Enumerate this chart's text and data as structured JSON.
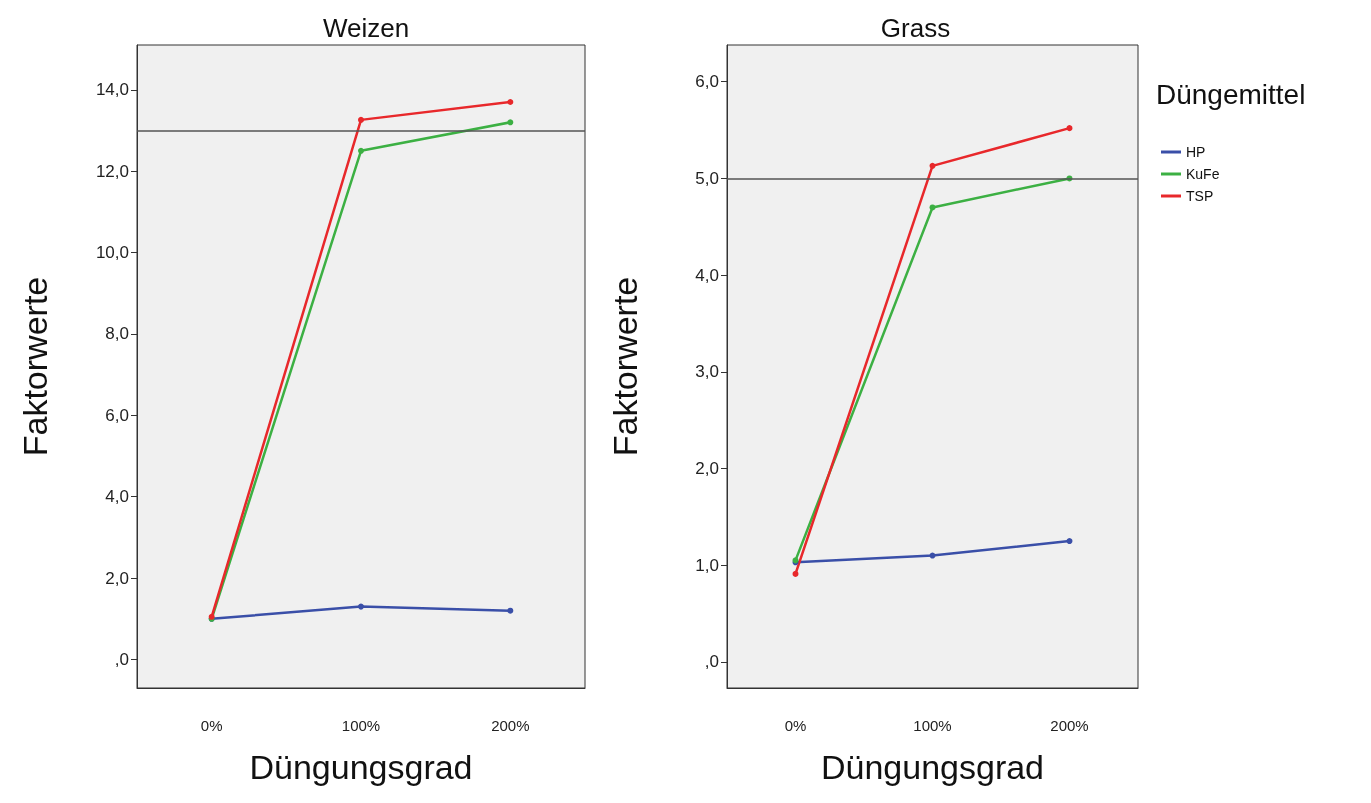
{
  "chart_data": [
    {
      "type": "line",
      "title": "Weizen",
      "xlabel": "Düngungsgrad",
      "ylabel": "Faktorwerte",
      "categories": [
        "0%",
        "100%",
        "200%"
      ],
      "series": [
        {
          "color": "#3a4fa8",
          "values": [
            1.0,
            1.3,
            1.2
          ]
        },
        {
          "color": "#3cb043",
          "values": [
            1.0,
            12.5,
            13.2
          ]
        },
        {
          "color": "#e8282b",
          "values": [
            1.05,
            13.26,
            13.7
          ]
        }
      ],
      "ylim": [
        -0.7,
        15.1
      ],
      "yticks": [
        {
          "value": 0,
          "label": ",0"
        },
        {
          "value": 2,
          "label": "2,0"
        },
        {
          "value": 4,
          "label": "4,0"
        },
        {
          "value": 6,
          "label": "6,0"
        },
        {
          "value": 8,
          "label": "8,0"
        },
        {
          "value": 10,
          "label": "10,0"
        },
        {
          "value": 12,
          "label": "12,0"
        },
        {
          "value": 14,
          "label": "14,0"
        }
      ],
      "ref_lines": [
        {
          "axis": "y",
          "value": 13,
          "color": "#555555"
        }
      ],
      "grid": false,
      "legend": false,
      "marker": "circle",
      "line_style": "solid"
    },
    {
      "type": "line",
      "title": "Grass",
      "xlabel": "Düngungsgrad",
      "ylabel": "Faktorwerte",
      "legend_title": "Düngemittel",
      "categories": [
        "0%",
        "100%",
        "200%"
      ],
      "series": [
        {
          "name": "HP",
          "color": "#3a4fa8",
          "values": [
            1.03,
            1.1,
            1.25
          ]
        },
        {
          "name": "KuFe",
          "color": "#3cb043",
          "values": [
            1.05,
            4.7,
            5.0
          ]
        },
        {
          "name": "TSP",
          "color": "#e8282b",
          "values": [
            0.91,
            5.13,
            5.52
          ]
        }
      ],
      "ylim": [
        -0.27,
        6.38
      ],
      "yticks": [
        {
          "value": 0,
          "label": ",0"
        },
        {
          "value": 1,
          "label": "1,0"
        },
        {
          "value": 2,
          "label": "2,0"
        },
        {
          "value": 3,
          "label": "3,0"
        },
        {
          "value": 4,
          "label": "4,0"
        },
        {
          "value": 5,
          "label": "5,0"
        },
        {
          "value": 6,
          "label": "6,0"
        }
      ],
      "ref_lines": [
        {
          "axis": "y",
          "value": 5,
          "color": "#555555"
        }
      ],
      "grid": false,
      "legend": "top right",
      "marker": "circle",
      "line_style": "solid"
    }
  ]
}
